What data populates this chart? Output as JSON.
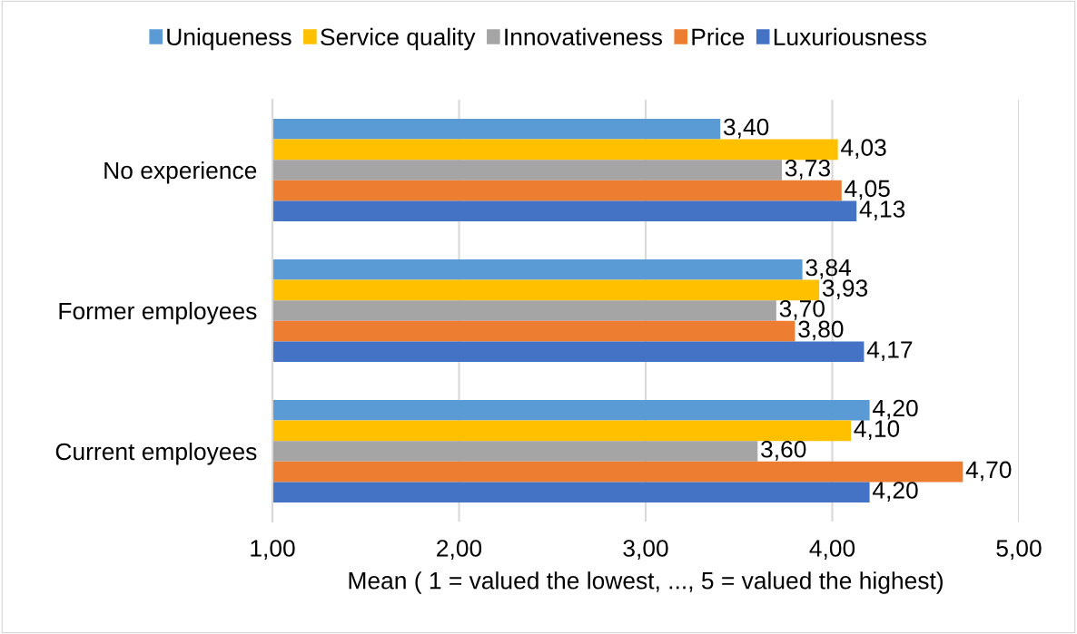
{
  "chart_data": {
    "type": "bar",
    "orientation": "horizontal",
    "xlabel": "Mean ( 1 = valued the lowest, ..., 5 = valued the highest)",
    "categories": [
      "No experience",
      "Former employees",
      "Current employees"
    ],
    "series": [
      {
        "name": "Uniqueness",
        "color": "#5b9bd5",
        "values": [
          3.4,
          3.84,
          4.2
        ],
        "value_labels": [
          "3,40",
          "3,84",
          "4,20"
        ]
      },
      {
        "name": "Service quality",
        "color": "#ffc000",
        "values": [
          4.03,
          3.93,
          4.1
        ],
        "value_labels": [
          "4,03",
          "3,93",
          "4,10"
        ]
      },
      {
        "name": "Innovativeness",
        "color": "#a5a5a5",
        "values": [
          3.73,
          3.7,
          3.6
        ],
        "value_labels": [
          "3,73",
          "3,70",
          "3,60"
        ]
      },
      {
        "name": "Price",
        "color": "#ed7d31",
        "values": [
          4.05,
          3.8,
          4.7
        ],
        "value_labels": [
          "4,05",
          "3,80",
          "4,70"
        ]
      },
      {
        "name": "Luxuriousness",
        "color": "#4472c4",
        "values": [
          4.13,
          4.17,
          4.2
        ],
        "value_labels": [
          "4,13",
          "4,17",
          "4,20"
        ]
      }
    ],
    "xlim": [
      1,
      5
    ],
    "xticks": [
      {
        "value": 1,
        "label": "1,00"
      },
      {
        "value": 2,
        "label": "2,00"
      },
      {
        "value": 3,
        "label": "3,00"
      },
      {
        "value": 4,
        "label": "4,00"
      },
      {
        "value": 5,
        "label": "5,00"
      }
    ],
    "grid": "x",
    "legend": "top"
  }
}
